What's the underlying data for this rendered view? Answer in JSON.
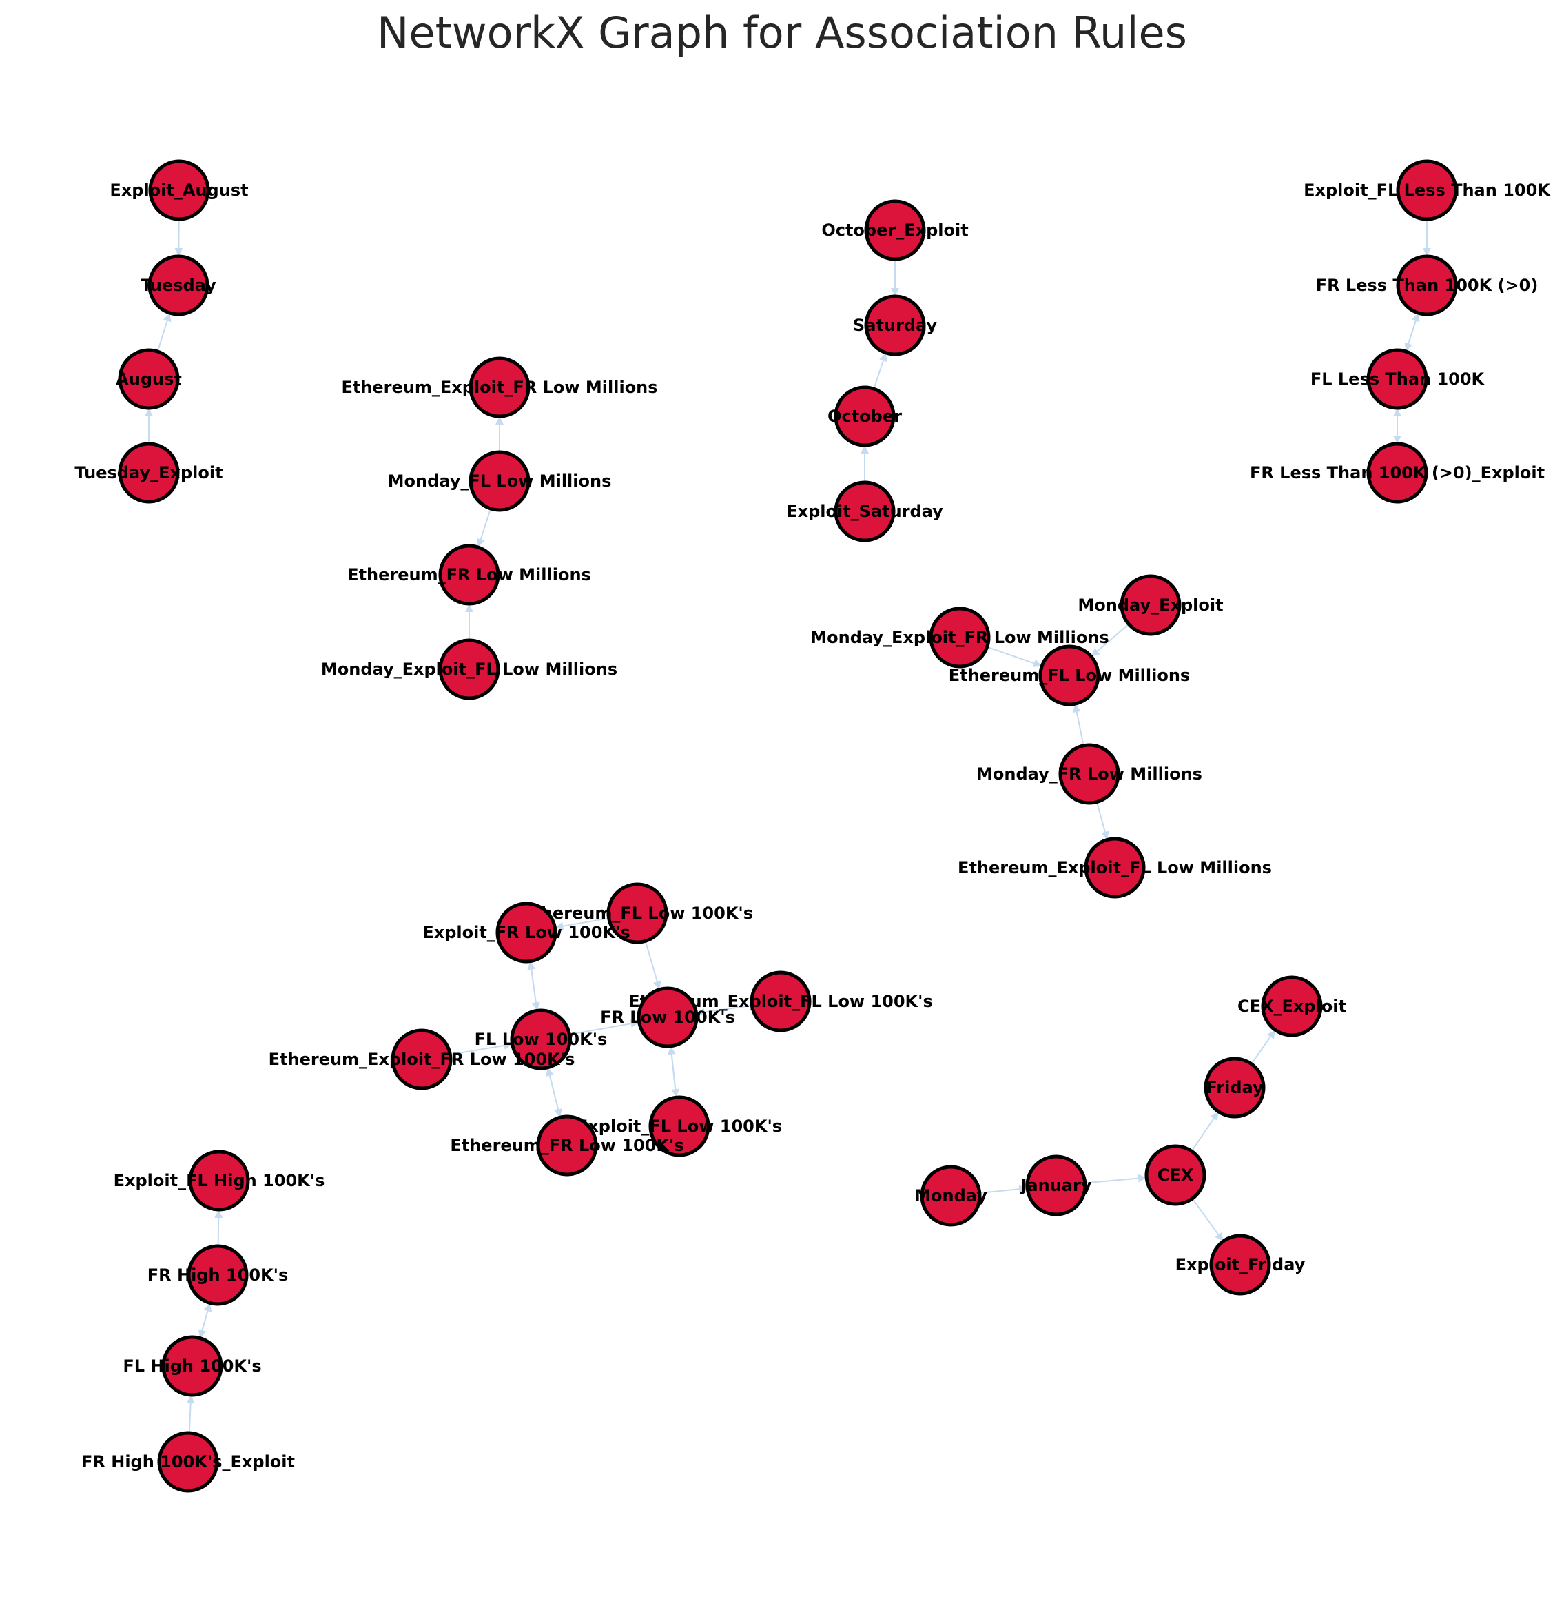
{
  "title": "NetworkX Graph for Association Rules",
  "colors": {
    "node_fill": "#dc143c",
    "node_stroke": "#000000",
    "edge": "#c6dbef",
    "text": "#000000"
  },
  "nodes": [
    {
      "id": "n1",
      "label": "Exploit_August"
    },
    {
      "id": "n2",
      "label": "Tuesday"
    },
    {
      "id": "n3",
      "label": "August"
    },
    {
      "id": "n4",
      "label": "Tuesday_Exploit"
    },
    {
      "id": "n5",
      "label": "Ethereum_Exploit_FR Low Millions"
    },
    {
      "id": "n6",
      "label": "Monday_FL Low Millions"
    },
    {
      "id": "n7",
      "label": "Ethereum_FR Low Millions"
    },
    {
      "id": "n8",
      "label": "Monday_Exploit_FL Low Millions"
    },
    {
      "id": "n9",
      "label": "October_Exploit"
    },
    {
      "id": "n10",
      "label": "Saturday"
    },
    {
      "id": "n11",
      "label": "October"
    },
    {
      "id": "n12",
      "label": "Exploit_Saturday"
    },
    {
      "id": "n13",
      "label": "Exploit_FL Less Than 100K"
    },
    {
      "id": "n14",
      "label": "FR Less Than 100K (>0)"
    },
    {
      "id": "n15",
      "label": "FL Less Than 100K"
    },
    {
      "id": "n16",
      "label": "FR Less Than 100K (>0)_Exploit"
    },
    {
      "id": "n17",
      "label": "Monday_Exploit"
    },
    {
      "id": "n18",
      "label": "Monday_Exploit_FR Low Millions"
    },
    {
      "id": "n19",
      "label": "Ethereum_FL Low Millions"
    },
    {
      "id": "n20",
      "label": "Monday_FR Low Millions"
    },
    {
      "id": "n21",
      "label": "Ethereum_Exploit_FL Low Millions"
    },
    {
      "id": "n22",
      "label": "Ethereum_FL Low 100K's"
    },
    {
      "id": "n23",
      "label": "Exploit_FR Low 100K's"
    },
    {
      "id": "n24",
      "label": "Ethereum_Exploit_FL Low 100K's"
    },
    {
      "id": "n25",
      "label": "FR Low 100K's"
    },
    {
      "id": "n26",
      "label": "FL Low 100K's"
    },
    {
      "id": "n27",
      "label": "Ethereum_Exploit_FR Low 100K's"
    },
    {
      "id": "n28",
      "label": "Exploit_FL Low 100K's"
    },
    {
      "id": "n29",
      "label": "Ethereum_FR Low 100K's"
    },
    {
      "id": "n30",
      "label": "CEX_Exploit"
    },
    {
      "id": "n31",
      "label": "Friday"
    },
    {
      "id": "n32",
      "label": "CEX"
    },
    {
      "id": "n33",
      "label": "January"
    },
    {
      "id": "n34",
      "label": "Monday"
    },
    {
      "id": "n35",
      "label": "Exploit_Friday"
    },
    {
      "id": "n36",
      "label": "Exploit_FL High 100K's"
    },
    {
      "id": "n37",
      "label": "FR High 100K's"
    },
    {
      "id": "n38",
      "label": "FL High 100K's"
    },
    {
      "id": "n39",
      "label": "FR High 100K's_Exploit"
    }
  ],
  "edges": [
    [
      "n1",
      "n2"
    ],
    [
      "n3",
      "n2"
    ],
    [
      "n4",
      "n3"
    ],
    [
      "n6",
      "n5"
    ],
    [
      "n6",
      "n7"
    ],
    [
      "n8",
      "n7"
    ],
    [
      "n9",
      "n10"
    ],
    [
      "n11",
      "n10"
    ],
    [
      "n12",
      "n11"
    ],
    [
      "n13",
      "n14"
    ],
    [
      "n15",
      "n14"
    ],
    [
      "n14",
      "n15"
    ],
    [
      "n16",
      "n15"
    ],
    [
      "n15",
      "n16"
    ],
    [
      "n17",
      "n19"
    ],
    [
      "n18",
      "n19"
    ],
    [
      "n20",
      "n19"
    ],
    [
      "n20",
      "n21"
    ],
    [
      "n22",
      "n25"
    ],
    [
      "n23",
      "n26"
    ],
    [
      "n26",
      "n23"
    ],
    [
      "n24",
      "n25"
    ],
    [
      "n26",
      "n25"
    ],
    [
      "n27",
      "n26"
    ],
    [
      "n25",
      "n28"
    ],
    [
      "n28",
      "n25"
    ],
    [
      "n29",
      "n26"
    ],
    [
      "n26",
      "n29"
    ],
    [
      "n22",
      "n23"
    ],
    [
      "n31",
      "n30"
    ],
    [
      "n32",
      "n31"
    ],
    [
      "n33",
      "n32"
    ],
    [
      "n34",
      "n33"
    ],
    [
      "n32",
      "n35"
    ],
    [
      "n37",
      "n36"
    ],
    [
      "n38",
      "n37"
    ],
    [
      "n37",
      "n38"
    ],
    [
      "n39",
      "n38"
    ]
  ]
}
